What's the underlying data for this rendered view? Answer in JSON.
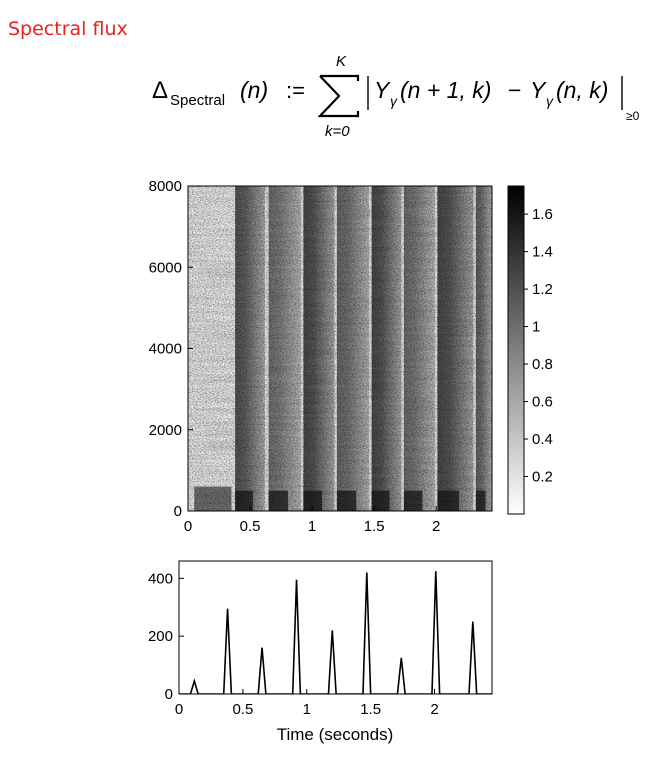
{
  "slide": {
    "title": "Spectral flux",
    "formula": {
      "lhs_symbol": "Δ",
      "lhs_subscript": "Spectral",
      "lhs_arg": "(n)",
      "assign": ":=",
      "sum_upper": "K",
      "sum_lower": "k=0",
      "term_a": "Y",
      "term_a_sub": "γ",
      "term_a_args": "(n + 1, k)",
      "minus": "−",
      "term_b": "Y",
      "term_b_sub": "γ",
      "term_b_args": "(n, k)",
      "bound_sub": "≥0"
    }
  },
  "colors": {
    "title": "#e8231e",
    "line": "#000000"
  },
  "chart_data": [
    {
      "type": "heatmap",
      "xlim": [
        0,
        2.45
      ],
      "ylim": [
        0,
        8000
      ],
      "xticks": [
        0,
        0.5,
        1,
        1.5,
        2
      ],
      "xtick_labels": [
        "0",
        "0.5",
        "1",
        "1.5",
        "2"
      ],
      "yticks": [
        0,
        2000,
        4000,
        6000,
        8000
      ],
      "ytick_labels": [
        "0",
        "2000",
        "4000",
        "6000",
        "8000"
      ],
      "colormap": "gray_r",
      "colorbar": {
        "range": [
          0,
          1.75
        ],
        "ticks": [
          0.2,
          0.4,
          0.6,
          0.8,
          1,
          1.2,
          1.4,
          1.6
        ],
        "tick_labels": [
          "0.2",
          "0.4",
          "0.6",
          "0.8",
          "1",
          "1.2",
          "1.4",
          "1.6"
        ]
      },
      "dark_bands": [
        {
          "start": 0.38,
          "end": 0.62,
          "level": 0.85
        },
        {
          "start": 0.65,
          "end": 0.91,
          "level": 0.7
        },
        {
          "start": 0.93,
          "end": 1.18,
          "level": 0.9
        },
        {
          "start": 1.2,
          "end": 1.46,
          "level": 0.75
        },
        {
          "start": 1.48,
          "end": 1.72,
          "level": 0.9
        },
        {
          "start": 1.74,
          "end": 1.99,
          "level": 0.72
        },
        {
          "start": 2.01,
          "end": 2.3,
          "level": 0.9
        },
        {
          "start": 2.32,
          "end": 2.45,
          "level": 0.78
        }
      ]
    },
    {
      "type": "line",
      "xlabel": "Time (seconds)",
      "xlim": [
        0,
        2.45
      ],
      "ylim": [
        0,
        460
      ],
      "xticks": [
        0,
        0.5,
        1,
        1.5,
        2
      ],
      "xtick_labels": [
        "0",
        "0.5",
        "1",
        "1.5",
        "2"
      ],
      "yticks": [
        0,
        200,
        400
      ],
      "ytick_labels": [
        "0",
        "200",
        "400"
      ],
      "peaks": [
        {
          "t": 0.12,
          "v": 45
        },
        {
          "t": 0.38,
          "v": 295
        },
        {
          "t": 0.65,
          "v": 160
        },
        {
          "t": 0.92,
          "v": 395
        },
        {
          "t": 1.2,
          "v": 220
        },
        {
          "t": 1.47,
          "v": 420
        },
        {
          "t": 1.74,
          "v": 125
        },
        {
          "t": 2.01,
          "v": 425
        },
        {
          "t": 2.3,
          "v": 250
        }
      ]
    }
  ]
}
